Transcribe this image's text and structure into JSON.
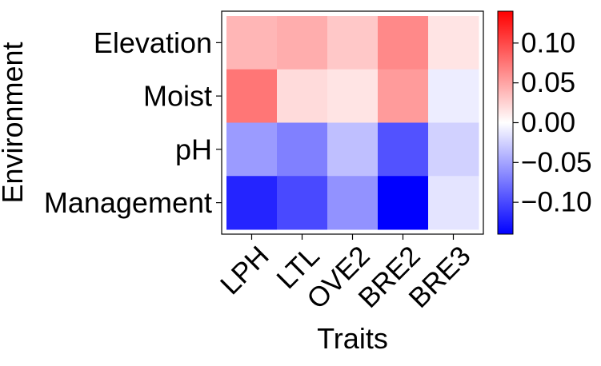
{
  "chart_data": {
    "type": "heatmap",
    "title": "",
    "xlabel": "Traits",
    "ylabel": "Environment",
    "x_categories": [
      "LPH",
      "LTL",
      "OVE2",
      "BRE2",
      "BRE3"
    ],
    "y_categories": [
      "Elevation",
      "Moist",
      "pH",
      "Management"
    ],
    "values": [
      [
        0.04,
        0.045,
        0.03,
        0.065,
        0.015
      ],
      [
        0.075,
        0.02,
        0.015,
        0.055,
        -0.01
      ],
      [
        -0.055,
        -0.07,
        -0.035,
        -0.095,
        -0.025
      ],
      [
        -0.12,
        -0.1,
        -0.06,
        -0.14,
        -0.015
      ]
    ],
    "color_scale": {
      "type": "diverging",
      "min": -0.14,
      "max": 0.14,
      "low_color": "#0000ff",
      "mid_color": "#ffffff",
      "high_color": "#ff0000"
    },
    "colorbar": {
      "tick_values": [
        0.1,
        0.05,
        0.0,
        -0.05,
        -0.1
      ],
      "tick_labels": [
        "0.10",
        "0.05",
        "0.00",
        "−0.05",
        "−0.10"
      ]
    },
    "grid": false,
    "legend": "colorbar-right"
  }
}
